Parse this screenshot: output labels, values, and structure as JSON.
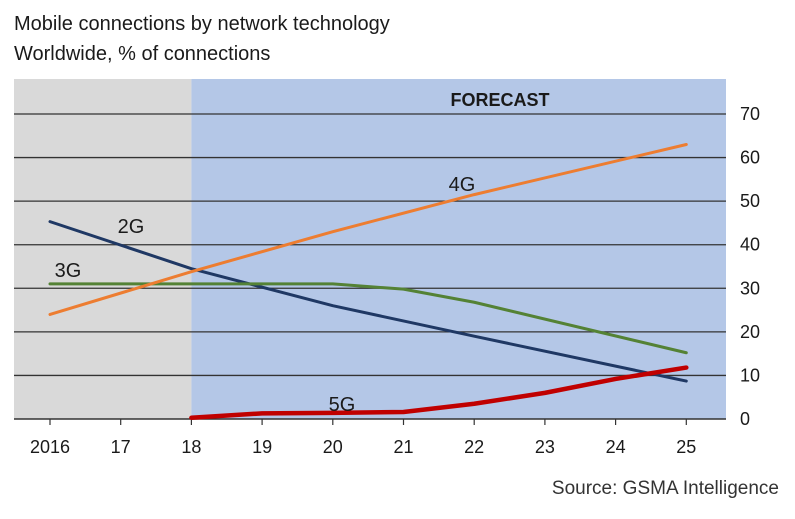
{
  "header": {
    "title": "Mobile connections by network technology",
    "subtitle": "Worldwide, % of connections"
  },
  "footer": {
    "source": "Source: GSMA Intelligence"
  },
  "chart_data": {
    "type": "line",
    "x": [
      2016,
      2017,
      2018,
      2019,
      2020,
      2021,
      2022,
      2023,
      2024,
      2025
    ],
    "x_tick_labels": [
      "2016",
      "17",
      "18",
      "19",
      "20",
      "21",
      "22",
      "23",
      "24",
      "25"
    ],
    "ylim": [
      0,
      70
    ],
    "y_ticks": [
      0,
      10,
      20,
      30,
      40,
      50,
      60,
      70
    ],
    "y_axis_side": "right",
    "grid": true,
    "forecast": {
      "label": "FORECAST",
      "from": 2018,
      "to": 2025.6
    },
    "series": [
      {
        "name": "2G",
        "color": "#1f3864",
        "points": [
          [
            2016,
            45.3
          ],
          [
            2018,
            34.5
          ],
          [
            2020,
            26
          ],
          [
            2022,
            19
          ],
          [
            2025,
            8.7
          ]
        ]
      },
      {
        "name": "3G",
        "color": "#548235",
        "points": [
          [
            2016,
            31
          ],
          [
            2020,
            31
          ],
          [
            2021,
            29.8
          ],
          [
            2022,
            26.8
          ],
          [
            2025,
            15.2
          ]
        ]
      },
      {
        "name": "4G",
        "color": "#ed7d31",
        "points": [
          [
            2016,
            24
          ],
          [
            2018,
            33.8
          ],
          [
            2020,
            43
          ],
          [
            2022,
            51.5
          ],
          [
            2025,
            63
          ]
        ]
      },
      {
        "name": "5G",
        "color": "#c00000",
        "points": [
          [
            2018,
            0.3
          ],
          [
            2019,
            1.3
          ],
          [
            2020,
            1.4
          ],
          [
            2021,
            1.6
          ],
          [
            2022,
            3.5
          ],
          [
            2023,
            6
          ],
          [
            2024,
            9.2
          ],
          [
            2025,
            11.8
          ]
        ]
      }
    ]
  }
}
